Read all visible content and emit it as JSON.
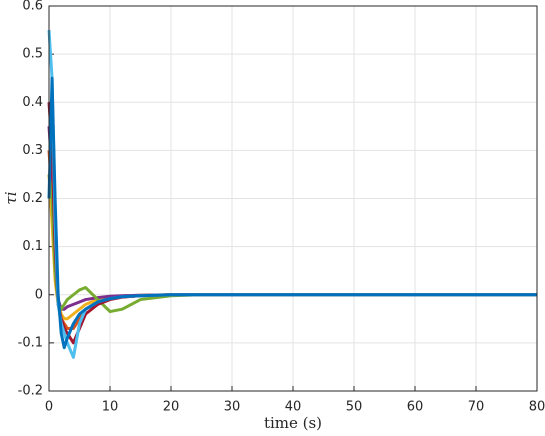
{
  "chart_data": {
    "type": "line",
    "xlabel": "time (s)",
    "ylabel": "τi",
    "x": [
      0,
      0.5,
      1,
      1.5,
      2,
      2.5,
      3,
      4,
      5,
      6,
      8,
      10,
      12,
      15,
      20,
      25,
      30,
      40,
      50,
      60,
      70,
      80
    ],
    "series": [
      {
        "color": "#D95319",
        "values": [
          0.3,
          0.2,
          0.05,
          -0.02,
          -0.05,
          -0.06,
          -0.07,
          -0.07,
          -0.05,
          -0.03,
          -0.015,
          -0.008,
          -0.004,
          -0.002,
          0,
          0,
          0,
          0,
          0,
          0,
          0,
          0
        ]
      },
      {
        "color": "#EDB120",
        "values": [
          0.25,
          0.15,
          0.03,
          -0.02,
          -0.04,
          -0.05,
          -0.05,
          -0.04,
          -0.03,
          -0.02,
          -0.01,
          -0.005,
          -0.003,
          -0.001,
          0,
          0,
          0,
          0,
          0,
          0,
          0,
          0
        ]
      },
      {
        "color": "#7E2F8E",
        "values": [
          0.35,
          0.25,
          0.08,
          -0.01,
          -0.03,
          -0.03,
          -0.025,
          -0.02,
          -0.015,
          -0.01,
          -0.006,
          -0.003,
          -0.002,
          -0.001,
          0,
          0,
          0,
          0,
          0,
          0,
          0,
          0
        ]
      },
      {
        "color": "#77AC30",
        "values": [
          0.25,
          0.2,
          0.05,
          -0.02,
          -0.03,
          -0.02,
          -0.01,
          0.0,
          0.01,
          0.015,
          -0.01,
          -0.035,
          -0.03,
          -0.01,
          -0.002,
          0,
          0,
          0,
          0,
          0,
          0,
          0
        ]
      },
      {
        "color": "#A2142F",
        "values": [
          0.4,
          0.3,
          0.1,
          -0.02,
          -0.05,
          -0.07,
          -0.08,
          -0.1,
          -0.07,
          -0.04,
          -0.02,
          -0.01,
          -0.005,
          -0.002,
          0,
          0,
          0,
          0,
          0,
          0,
          0,
          0
        ]
      },
      {
        "color": "#4DBEEE",
        "values": [
          0.55,
          0.45,
          0.15,
          -0.02,
          -0.06,
          -0.08,
          -0.1,
          -0.13,
          -0.06,
          -0.03,
          -0.015,
          -0.008,
          -0.004,
          -0.002,
          0,
          0,
          0,
          0,
          0,
          0,
          0,
          0
        ]
      },
      {
        "color": "#0072BD",
        "values": [
          0.2,
          0.45,
          0.2,
          0.0,
          -0.08,
          -0.11,
          -0.09,
          -0.06,
          -0.04,
          -0.03,
          -0.015,
          -0.008,
          -0.004,
          -0.002,
          0,
          0,
          0,
          0,
          0,
          0,
          0,
          0
        ]
      }
    ],
    "xlim": [
      0,
      80
    ],
    "xticks": [
      0,
      10,
      20,
      30,
      40,
      50,
      60,
      70,
      80
    ],
    "ylim": [
      -0.2,
      0.6
    ],
    "yticks": [
      -0.2,
      -0.1,
      0,
      0.1,
      0.2,
      0.3,
      0.4,
      0.5,
      0.6
    ],
    "grid": true
  }
}
